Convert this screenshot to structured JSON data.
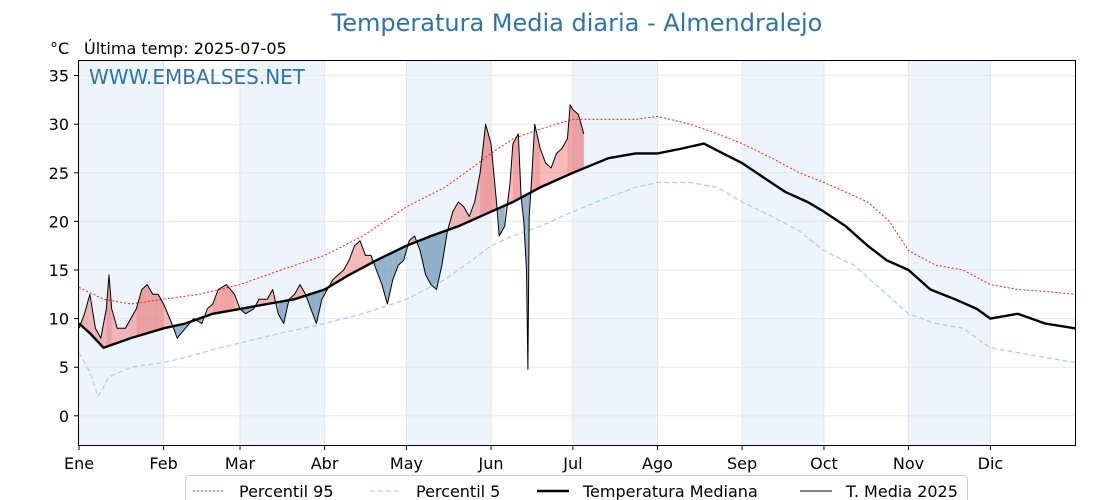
{
  "chart_data": {
    "type": "line",
    "title": "Temperatura Media diaria - Almendralejo",
    "unit": "°C",
    "last_update": "Última temp: 2025-07-05",
    "watermark": "WWW.EMBALSES.NET",
    "ylim": [
      -3,
      36.5
    ],
    "yticks": [
      0,
      5,
      10,
      15,
      20,
      25,
      30,
      35
    ],
    "xlim": [
      1,
      366
    ],
    "months": [
      {
        "label": "Ene",
        "day": 1
      },
      {
        "label": "Feb",
        "day": 32
      },
      {
        "label": "Mar",
        "day": 60
      },
      {
        "label": "Abr",
        "day": 91
      },
      {
        "label": "May",
        "day": 121
      },
      {
        "label": "Jun",
        "day": 152
      },
      {
        "label": "Jul",
        "day": 182
      },
      {
        "label": "Ago",
        "day": 213
      },
      {
        "label": "Sep",
        "day": 244
      },
      {
        "label": "Oct",
        "day": 274
      },
      {
        "label": "Nov",
        "day": 305
      },
      {
        "label": "Dic",
        "day": 335
      }
    ],
    "shaded_month_bands": [
      [
        1,
        32
      ],
      [
        60,
        91
      ],
      [
        121,
        152
      ],
      [
        182,
        213
      ],
      [
        244,
        274
      ],
      [
        305,
        335
      ]
    ],
    "grid": true,
    "legend_position": "bottom",
    "colors": {
      "p95": "#e8231f",
      "p5": "#a9d4e0",
      "median": "#000000",
      "current": "#000000",
      "above_fill": "#f08080",
      "below_fill": "#6f98bb",
      "band": "#eef4fb",
      "title": "#2f74a8"
    },
    "series": [
      {
        "name": "Percentil 95",
        "style": "dotted",
        "points": [
          [
            1,
            13.2
          ],
          [
            10,
            12.0
          ],
          [
            20,
            11.5
          ],
          [
            32,
            12.0
          ],
          [
            45,
            12.5
          ],
          [
            60,
            13.5
          ],
          [
            75,
            15.0
          ],
          [
            91,
            16.5
          ],
          [
            105,
            18.5
          ],
          [
            121,
            21.5
          ],
          [
            135,
            23.5
          ],
          [
            145,
            25.5
          ],
          [
            152,
            27.0
          ],
          [
            160,
            28.5
          ],
          [
            170,
            29.5
          ],
          [
            182,
            30.5
          ],
          [
            195,
            30.5
          ],
          [
            205,
            30.5
          ],
          [
            213,
            30.8
          ],
          [
            225,
            30.0
          ],
          [
            235,
            29.0
          ],
          [
            244,
            28.0
          ],
          [
            255,
            26.5
          ],
          [
            265,
            25.0
          ],
          [
            274,
            24.0
          ],
          [
            282,
            23.0
          ],
          [
            290,
            22.0
          ],
          [
            298,
            20.0
          ],
          [
            305,
            17.0
          ],
          [
            315,
            15.5
          ],
          [
            325,
            15.0
          ],
          [
            335,
            13.5
          ],
          [
            345,
            13.0
          ],
          [
            355,
            12.8
          ],
          [
            366,
            12.5
          ]
        ]
      },
      {
        "name": "Percentil 5",
        "style": "dashed",
        "points": [
          [
            1,
            6.5
          ],
          [
            5,
            4.5
          ],
          [
            8,
            2.0
          ],
          [
            12,
            4.0
          ],
          [
            20,
            5.0
          ],
          [
            32,
            5.5
          ],
          [
            40,
            6.0
          ],
          [
            50,
            6.8
          ],
          [
            60,
            7.5
          ],
          [
            75,
            8.5
          ],
          [
            91,
            9.5
          ],
          [
            105,
            10.5
          ],
          [
            121,
            12.0
          ],
          [
            135,
            14.0
          ],
          [
            145,
            16.0
          ],
          [
            152,
            17.5
          ],
          [
            160,
            18.5
          ],
          [
            170,
            19.5
          ],
          [
            182,
            21.0
          ],
          [
            195,
            22.5
          ],
          [
            205,
            23.5
          ],
          [
            213,
            24.0
          ],
          [
            225,
            24.0
          ],
          [
            235,
            23.5
          ],
          [
            244,
            22.0
          ],
          [
            255,
            20.5
          ],
          [
            265,
            19.0
          ],
          [
            274,
            17.0
          ],
          [
            285,
            15.5
          ],
          [
            295,
            13.0
          ],
          [
            305,
            10.5
          ],
          [
            315,
            9.5
          ],
          [
            325,
            9.0
          ],
          [
            335,
            7.0
          ],
          [
            345,
            6.5
          ],
          [
            355,
            6.0
          ],
          [
            366,
            5.5
          ]
        ]
      },
      {
        "name": "Temperatura Mediana",
        "style": "solid-thick",
        "points": [
          [
            1,
            9.5
          ],
          [
            5,
            8.5
          ],
          [
            10,
            7.0
          ],
          [
            20,
            8.0
          ],
          [
            32,
            9.0
          ],
          [
            40,
            9.5
          ],
          [
            50,
            10.5
          ],
          [
            60,
            11.0
          ],
          [
            70,
            11.5
          ],
          [
            80,
            12.0
          ],
          [
            91,
            13.0
          ],
          [
            100,
            14.5
          ],
          [
            110,
            16.0
          ],
          [
            121,
            17.5
          ],
          [
            130,
            18.5
          ],
          [
            140,
            19.5
          ],
          [
            152,
            21.0
          ],
          [
            160,
            22.0
          ],
          [
            170,
            23.5
          ],
          [
            182,
            25.0
          ],
          [
            195,
            26.5
          ],
          [
            205,
            27.0
          ],
          [
            213,
            27.0
          ],
          [
            222,
            27.5
          ],
          [
            230,
            28.0
          ],
          [
            237,
            27.0
          ],
          [
            244,
            26.0
          ],
          [
            252,
            24.5
          ],
          [
            260,
            23.0
          ],
          [
            268,
            22.0
          ],
          [
            274,
            21.0
          ],
          [
            282,
            19.5
          ],
          [
            290,
            17.5
          ],
          [
            297,
            16.0
          ],
          [
            305,
            15.0
          ],
          [
            313,
            13.0
          ],
          [
            322,
            12.0
          ],
          [
            330,
            11.0
          ],
          [
            335,
            10.0
          ],
          [
            345,
            10.5
          ],
          [
            355,
            9.5
          ],
          [
            366,
            9.0
          ]
        ]
      },
      {
        "name": "T. Media 2025",
        "style": "solid-thin",
        "points": [
          [
            1,
            9.0
          ],
          [
            3,
            10.5
          ],
          [
            5,
            12.5
          ],
          [
            7,
            9.0
          ],
          [
            9,
            8.0
          ],
          [
            11,
            11.0
          ],
          [
            12,
            14.5
          ],
          [
            13,
            11.0
          ],
          [
            15,
            9.0
          ],
          [
            18,
            9.0
          ],
          [
            20,
            10.0
          ],
          [
            22,
            11.0
          ],
          [
            24,
            13.0
          ],
          [
            26,
            13.5
          ],
          [
            28,
            12.5
          ],
          [
            30,
            12.5
          ],
          [
            32,
            11.5
          ],
          [
            35,
            9.5
          ],
          [
            37,
            8.0
          ],
          [
            40,
            9.0
          ],
          [
            43,
            10.0
          ],
          [
            46,
            9.5
          ],
          [
            48,
            11.0
          ],
          [
            50,
            11.5
          ],
          [
            52,
            13.0
          ],
          [
            55,
            13.5
          ],
          [
            58,
            12.5
          ],
          [
            60,
            11.0
          ],
          [
            62,
            10.5
          ],
          [
            65,
            11.0
          ],
          [
            67,
            12.0
          ],
          [
            70,
            12.0
          ],
          [
            72,
            13.0
          ],
          [
            74,
            10.5
          ],
          [
            76,
            9.5
          ],
          [
            78,
            12.0
          ],
          [
            80,
            12.5
          ],
          [
            82,
            13.5
          ],
          [
            84,
            12.5
          ],
          [
            86,
            11.0
          ],
          [
            88,
            9.5
          ],
          [
            90,
            12.0
          ],
          [
            92,
            13.0
          ],
          [
            94,
            14.0
          ],
          [
            96,
            14.5
          ],
          [
            98,
            15.0
          ],
          [
            100,
            16.0
          ],
          [
            102,
            17.5
          ],
          [
            104,
            18.0
          ],
          [
            106,
            16.5
          ],
          [
            108,
            16.5
          ],
          [
            110,
            15.0
          ],
          [
            112,
            13.5
          ],
          [
            114,
            11.5
          ],
          [
            116,
            14.0
          ],
          [
            118,
            15.5
          ],
          [
            120,
            16.0
          ],
          [
            122,
            18.0
          ],
          [
            124,
            18.5
          ],
          [
            126,
            17.0
          ],
          [
            128,
            14.5
          ],
          [
            130,
            13.5
          ],
          [
            132,
            13.0
          ],
          [
            134,
            15.5
          ],
          [
            136,
            19.0
          ],
          [
            138,
            21.0
          ],
          [
            140,
            22.0
          ],
          [
            142,
            21.5
          ],
          [
            144,
            20.5
          ],
          [
            146,
            22.0
          ],
          [
            148,
            25.0
          ],
          [
            149,
            27.5
          ],
          [
            150,
            30.0
          ],
          [
            152,
            28.0
          ],
          [
            154,
            22.0
          ],
          [
            155,
            18.5
          ],
          [
            157,
            19.5
          ],
          [
            159,
            24.0
          ],
          [
            160,
            28.0
          ],
          [
            162,
            29.0
          ],
          [
            163,
            22.5
          ],
          [
            164,
            20.0
          ],
          [
            165,
            15.0
          ],
          [
            165.5,
            4.8
          ],
          [
            166,
            20.5
          ],
          [
            167,
            25.0
          ],
          [
            168,
            30.0
          ],
          [
            170,
            27.5
          ],
          [
            172,
            26.0
          ],
          [
            174,
            25.5
          ],
          [
            176,
            27.0
          ],
          [
            178,
            27.5
          ],
          [
            180,
            28.5
          ],
          [
            181,
            32.0
          ],
          [
            182,
            31.5
          ],
          [
            184,
            31.0
          ],
          [
            186,
            29.0
          ]
        ]
      }
    ],
    "legend": [
      {
        "label": "Percentil 95",
        "style": "dotted",
        "color": "#e8231f"
      },
      {
        "label": "Percentil 5",
        "style": "dashed",
        "color": "#a9d4e0"
      },
      {
        "label": "Temperatura Mediana",
        "style": "solid-thick",
        "color": "#000000"
      },
      {
        "label": "T. Media 2025",
        "style": "solid-thin",
        "color": "#000000"
      }
    ]
  }
}
